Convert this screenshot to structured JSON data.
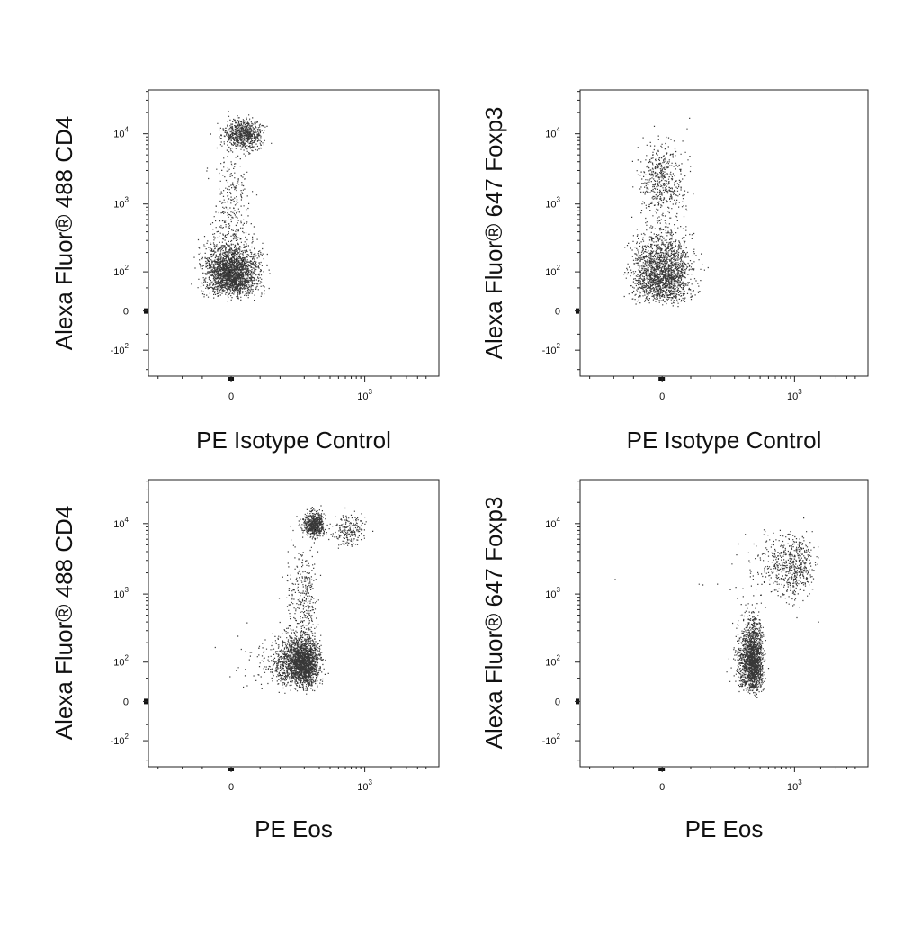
{
  "chart_data": [
    {
      "type": "scatter",
      "panel": "top-left",
      "xlabel": "PE Isotype Control",
      "ylabel": "Alexa Fluor® 488 CD4",
      "x_scale": "biexponential",
      "y_scale": "biexponential",
      "x_ticks": [
        {
          "value": 0,
          "base": "0",
          "exp": ""
        },
        {
          "value": 1000,
          "base": "10",
          "exp": "3"
        }
      ],
      "y_ticks": [
        {
          "value": -100,
          "base": "-10",
          "exp": "2"
        },
        {
          "value": 0,
          "base": "0",
          "exp": ""
        },
        {
          "value": 100,
          "base": "10",
          "exp": "2"
        },
        {
          "value": 1000,
          "base": "10",
          "exp": "3"
        },
        {
          "value": 10000,
          "base": "10",
          "exp": "4"
        }
      ],
      "populations": [
        {
          "name": "",
          "x_center": 0,
          "y_center": 100,
          "x_spread": 22,
          "y_spread": 0.22,
          "count": 2200
        },
        {
          "name": "",
          "x_center": 20,
          "y_center": 10000,
          "x_spread": 16,
          "y_spread": 0.1,
          "count": 700
        },
        {
          "name": "",
          "x_center": 0,
          "y_center": 900,
          "x_spread": 15,
          "y_spread": 0.35,
          "count": 260
        }
      ]
    },
    {
      "type": "scatter",
      "panel": "top-right",
      "xlabel": "PE Isotype Control",
      "ylabel": "Alexa Fluor® 647 Foxp3",
      "x_scale": "biexponential",
      "y_scale": "biexponential",
      "x_ticks": [
        {
          "value": 0,
          "base": "0",
          "exp": ""
        },
        {
          "value": 1000,
          "base": "10",
          "exp": "3"
        }
      ],
      "y_ticks": [
        {
          "value": -100,
          "base": "-10",
          "exp": "2"
        },
        {
          "value": 0,
          "base": "0",
          "exp": ""
        },
        {
          "value": 100,
          "base": "10",
          "exp": "2"
        },
        {
          "value": 1000,
          "base": "10",
          "exp": "3"
        },
        {
          "value": 10000,
          "base": "10",
          "exp": "4"
        }
      ],
      "populations": [
        {
          "name": "",
          "x_center": 0,
          "y_center": 100,
          "x_spread": 24,
          "y_spread": 0.3,
          "count": 1900
        },
        {
          "name": "",
          "x_center": 0,
          "y_center": 2000,
          "x_spread": 18,
          "y_spread": 0.28,
          "count": 500
        }
      ]
    },
    {
      "type": "scatter",
      "panel": "bottom-left",
      "xlabel": "PE Eos",
      "ylabel": "Alexa Fluor® 488 CD4",
      "x_scale": "biexponential",
      "y_scale": "biexponential",
      "x_ticks": [
        {
          "value": 0,
          "base": "0",
          "exp": ""
        },
        {
          "value": 1000,
          "base": "10",
          "exp": "3"
        }
      ],
      "y_ticks": [
        {
          "value": -100,
          "base": "-10",
          "exp": "2"
        },
        {
          "value": 0,
          "base": "0",
          "exp": ""
        },
        {
          "value": 100,
          "base": "10",
          "exp": "2"
        },
        {
          "value": 1000,
          "base": "10",
          "exp": "3"
        },
        {
          "value": 10000,
          "base": "10",
          "exp": "4"
        }
      ],
      "populations": [
        {
          "name": "",
          "x_center": 180,
          "y_center": 100,
          "x_spread": 55,
          "y_spread": 0.22,
          "count": 2200
        },
        {
          "name": "",
          "x_center": 260,
          "y_center": 10000,
          "x_spread": 35,
          "y_spread": 0.08,
          "count": 600
        },
        {
          "name": "",
          "x_center": 650,
          "y_center": 8000,
          "x_spread": 140,
          "y_spread": 0.12,
          "count": 220
        },
        {
          "name": "",
          "x_center": 200,
          "y_center": 900,
          "x_spread": 45,
          "y_spread": 0.35,
          "count": 300
        }
      ]
    },
    {
      "type": "scatter",
      "panel": "bottom-right",
      "xlabel": "PE Eos",
      "ylabel": "Alexa Fluor® 647 Foxp3",
      "x_scale": "biexponential",
      "y_scale": "biexponential",
      "x_ticks": [
        {
          "value": 0,
          "base": "0",
          "exp": ""
        },
        {
          "value": 1000,
          "base": "10",
          "exp": "3"
        }
      ],
      "y_ticks": [
        {
          "value": -100,
          "base": "-10",
          "exp": "2"
        },
        {
          "value": 0,
          "base": "0",
          "exp": ""
        },
        {
          "value": 100,
          "base": "10",
          "exp": "2"
        },
        {
          "value": 1000,
          "base": "10",
          "exp": "3"
        },
        {
          "value": 10000,
          "base": "10",
          "exp": "4"
        }
      ],
      "populations": [
        {
          "name": "",
          "x_center": 320,
          "y_center": 110,
          "x_spread": 50,
          "y_spread": 0.3,
          "count": 1700
        },
        {
          "name": "",
          "x_center": 900,
          "y_center": 2500,
          "x_spread": 330,
          "y_spread": 0.22,
          "count": 600
        }
      ]
    }
  ],
  "colors": {
    "dots": "#000000",
    "frame": "#222222",
    "background": "#ffffff"
  }
}
